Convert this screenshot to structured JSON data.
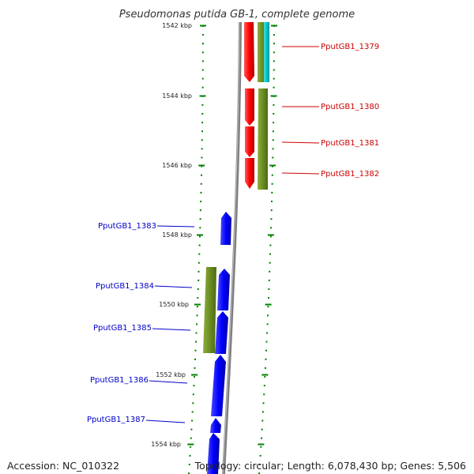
{
  "title": "Pseudomonas putida GB-1, complete genome",
  "accession_text": "Accession: NC_010322",
  "summary_text": "Topology: circular; Length: 6,078,430 bp; Genes: 5,506",
  "colors": {
    "forward_gene": "#ff0000",
    "reverse_gene": "#0000ff",
    "cds_bar": "#6b8e23",
    "cyan_bar": "#00c8c8",
    "backbone": "#808080",
    "ticks": "#008000",
    "forward_label": "#cc0000",
    "reverse_label": "#0000cc"
  },
  "kbp_ticks": [
    "1542 kbp",
    "1544 kbp",
    "1546 kbp",
    "1548 kbp",
    "1550 kbp",
    "1552 kbp",
    "1554 kbp"
  ],
  "genes_forward": [
    {
      "label": "PputGB1_1379"
    },
    {
      "label": "PputGB1_1380"
    },
    {
      "label": "PputGB1_1381"
    },
    {
      "label": "PputGB1_1382"
    }
  ],
  "genes_reverse": [
    {
      "label": "PputGB1_1383"
    },
    {
      "label": "PputGB1_1384"
    },
    {
      "label": "PputGB1_1385"
    },
    {
      "label": "PputGB1_1386"
    },
    {
      "label": "PputGB1_1387"
    }
  ]
}
